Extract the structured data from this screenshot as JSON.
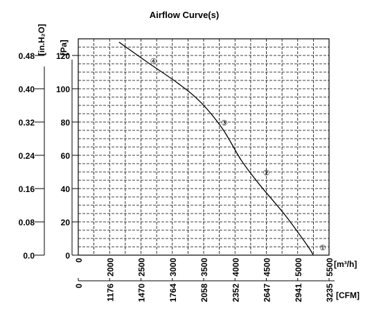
{
  "chart_data": {
    "type": "line",
    "title": "Airflow Curve(s)",
    "x_unit": "[m³/h]",
    "x2_unit": "[CFM]",
    "y_unit": "[Pa]",
    "y2_unit": "[in.H₂O]",
    "xlim": [
      0,
      5500
    ],
    "ylim": [
      0,
      130
    ],
    "x_ticks": [
      0,
      2000,
      2500,
      3000,
      3500,
      4000,
      4500,
      5000,
      5500
    ],
    "x_tick_labels": [
      "0",
      "2000",
      "2500",
      "3000",
      "3500",
      "4000",
      "4500",
      "5000",
      "5500"
    ],
    "x2_ticks": [
      0,
      2000,
      2500,
      3000,
      3500,
      4000,
      4500,
      5000,
      5500
    ],
    "x2_tick_labels": [
      "0",
      "1176",
      "1470",
      "1764",
      "2058",
      "2352",
      "2647",
      "2941",
      "3235"
    ],
    "y_ticks": [
      0,
      20,
      40,
      60,
      80,
      100,
      120
    ],
    "y_tick_labels": [
      "0",
      "20",
      "40",
      "60",
      "80",
      "100",
      "120"
    ],
    "y2_ticks": [
      0,
      20,
      40,
      60,
      80,
      100,
      120
    ],
    "y2_tick_labels": [
      "0.0",
      "0.08",
      "0.16",
      "0.24",
      "0.32",
      "0.40",
      "0.48"
    ],
    "grid": true,
    "series": [
      {
        "points": [
          [
            2150,
            128
          ],
          [
            2600,
            116
          ],
          [
            3100,
            103
          ],
          [
            3450,
            92
          ],
          [
            3800,
            76
          ],
          [
            4100,
            57
          ],
          [
            4400,
            42
          ],
          [
            4800,
            24
          ],
          [
            5150,
            6
          ],
          [
            5250,
            0
          ]
        ]
      }
    ],
    "markers": [
      {
        "label": "④",
        "x": 2700,
        "y": 117
      },
      {
        "label": "③",
        "x": 3830,
        "y": 80
      },
      {
        "label": "②",
        "x": 4500,
        "y": 50
      },
      {
        "label": "①",
        "x": 5400,
        "y": 5
      }
    ]
  }
}
